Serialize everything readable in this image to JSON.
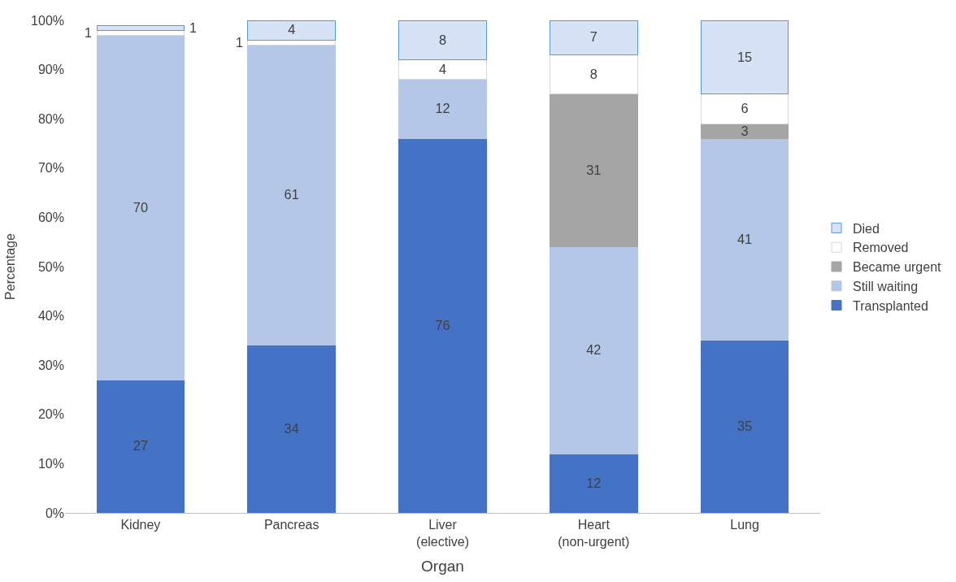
{
  "chart_data": {
    "type": "bar",
    "stacked": true,
    "xlabel": "Organ",
    "ylabel": "Percentage",
    "categories": [
      "Kidney",
      "Pancreas",
      "Liver\n(elective)",
      "Heart\n(non-urgent)",
      "Lung"
    ],
    "series": [
      {
        "name": "Transplanted",
        "color": "#4472c4",
        "values": [
          27,
          34,
          76,
          12,
          35
        ]
      },
      {
        "name": "Still waiting",
        "color": "#b4c7e7",
        "values": [
          70,
          61,
          12,
          42,
          41
        ]
      },
      {
        "name": "Became urgent",
        "color": "#a5a5a5",
        "values": [
          null,
          null,
          null,
          31,
          3
        ]
      },
      {
        "name": "Removed",
        "color": "#ffffff",
        "values": [
          1,
          1,
          4,
          8,
          6
        ]
      },
      {
        "name": "Died",
        "color": "#d6e2f5",
        "values": [
          1,
          4,
          8,
          7,
          15
        ]
      }
    ],
    "ylim": [
      0,
      100
    ],
    "yticks": [
      {
        "value": 0,
        "label": "0%"
      },
      {
        "value": 10,
        "label": "10%"
      },
      {
        "value": 20,
        "label": "20%"
      },
      {
        "value": 30,
        "label": "30%"
      },
      {
        "value": 40,
        "label": "40%"
      },
      {
        "value": 50,
        "label": "50%"
      },
      {
        "value": 60,
        "label": "60%"
      },
      {
        "value": 70,
        "label": "70%"
      },
      {
        "value": 80,
        "label": "80%"
      },
      {
        "value": 90,
        "label": "90%"
      },
      {
        "value": 100,
        "label": "100%"
      }
    ],
    "data_labels": true,
    "legend": "right",
    "grid": false
  }
}
